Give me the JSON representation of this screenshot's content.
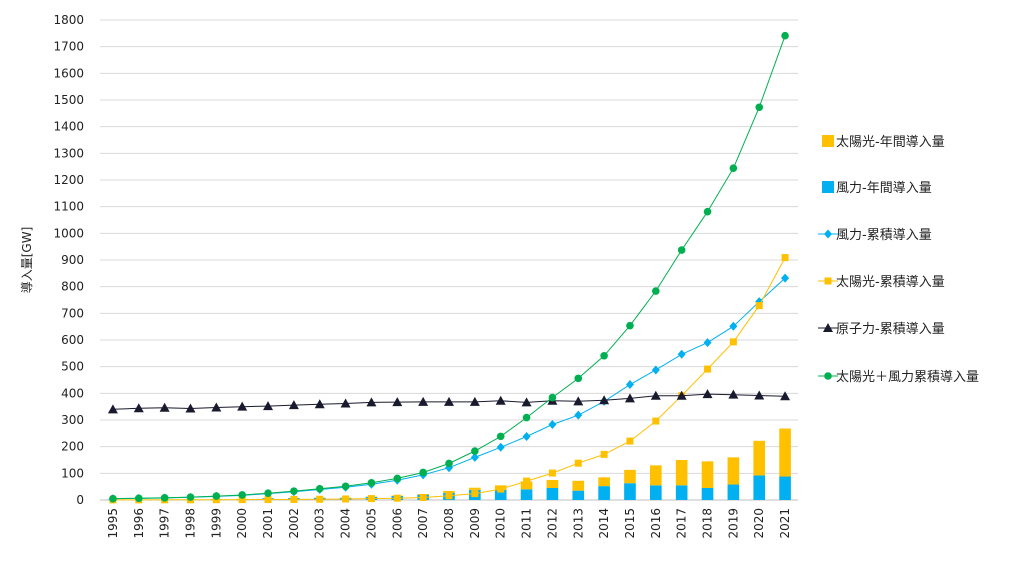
{
  "chart_data": {
    "type": "bar+line",
    "title": "",
    "xlabel": "",
    "ylabel": "導入量[GW]",
    "ylim": [
      0,
      1800
    ],
    "yticks": [
      0,
      100,
      200,
      300,
      400,
      500,
      600,
      700,
      800,
      900,
      1000,
      1100,
      1200,
      1300,
      1400,
      1500,
      1600,
      1700,
      1800
    ],
    "grid": "horizontal",
    "legend_position": "right",
    "categories": [
      "1995",
      "1996",
      "1997",
      "1998",
      "1999",
      "2000",
      "2001",
      "2002",
      "2003",
      "2004",
      "2005",
      "2006",
      "2007",
      "2008",
      "2009",
      "2010",
      "2011",
      "2012",
      "2013",
      "2014",
      "2015",
      "2016",
      "2017",
      "2018",
      "2019",
      "2020",
      "2021"
    ],
    "series": [
      {
        "name": "太陽光-年間導入量",
        "kind": "bar",
        "stack": "annual",
        "color": "#FFC000",
        "marker": "bar",
        "values": [
          0.1,
          0.1,
          0.2,
          0.2,
          0.3,
          0.3,
          0.3,
          0.5,
          0.6,
          1.1,
          1.4,
          1.5,
          2.5,
          6.7,
          8,
          17,
          30,
          30,
          37,
          33,
          50,
          75,
          95,
          100,
          102,
          130,
          180
        ]
      },
      {
        "name": "風力-年間導入量",
        "kind": "bar",
        "stack": "annual",
        "color": "#00B0F0",
        "marker": "bar",
        "values": [
          1.3,
          1.3,
          1.5,
          2.5,
          3.4,
          3.8,
          6.5,
          7.2,
          8.3,
          8.2,
          11.5,
          15,
          20,
          27,
          38,
          38,
          40,
          45,
          35,
          52,
          63,
          55,
          55,
          45,
          58,
          92,
          88
        ]
      },
      {
        "name": "風力-累積導入量",
        "kind": "line",
        "color": "#00B0F0",
        "marker": "diamond",
        "values": [
          4.8,
          6.1,
          7.6,
          10,
          13.6,
          17.4,
          23.9,
          31.1,
          39.4,
          47.6,
          59.1,
          74.1,
          94,
          121,
          159.7,
          197.6,
          238.1,
          283.2,
          318.1,
          369.9,
          432.9,
          487.7,
          546.4,
          590.3,
          651.4,
          743.7,
          832
        ]
      },
      {
        "name": "太陽光-累積導入量",
        "kind": "line",
        "color": "#FFC000",
        "marker": "square",
        "values": [
          0.3,
          0.4,
          0.6,
          0.8,
          1.1,
          1.4,
          1.7,
          2.2,
          2.8,
          3.9,
          5.3,
          6.8,
          9.3,
          16,
          24,
          41,
          71,
          101,
          138,
          171,
          221,
          296,
          391,
          491,
          593,
          729,
          909
        ]
      },
      {
        "name": "原子力-累積導入量",
        "kind": "line",
        "color": "#1a1a2e",
        "marker": "triangle",
        "values": [
          340,
          344,
          346,
          343,
          347,
          350,
          352,
          356,
          359,
          362,
          366,
          367,
          368,
          368,
          368,
          372,
          366,
          372,
          370,
          374,
          381,
          391,
          391,
          397,
          395,
          392,
          389
        ]
      },
      {
        "name": "太陽光＋風力累積導入量",
        "kind": "line",
        "color": "#00B050",
        "marker": "circle",
        "values": [
          5.1,
          6.5,
          8.2,
          10.8,
          14.7,
          18.8,
          25.6,
          33.3,
          42.2,
          51.5,
          64.4,
          80.9,
          103.3,
          137,
          183.7,
          238.6,
          309.1,
          384.2,
          456.1,
          540.9,
          653.9,
          783.7,
          937.4,
          1081.3,
          1244.4,
          1472.7,
          1741
        ]
      }
    ],
    "legend_order": [
      "太陽光-年間導入量",
      "風力-年間導入量",
      "風力-累積導入量",
      "太陽光-累積導入量",
      "原子力-累積導入量",
      "太陽光＋風力累積導入量"
    ]
  }
}
